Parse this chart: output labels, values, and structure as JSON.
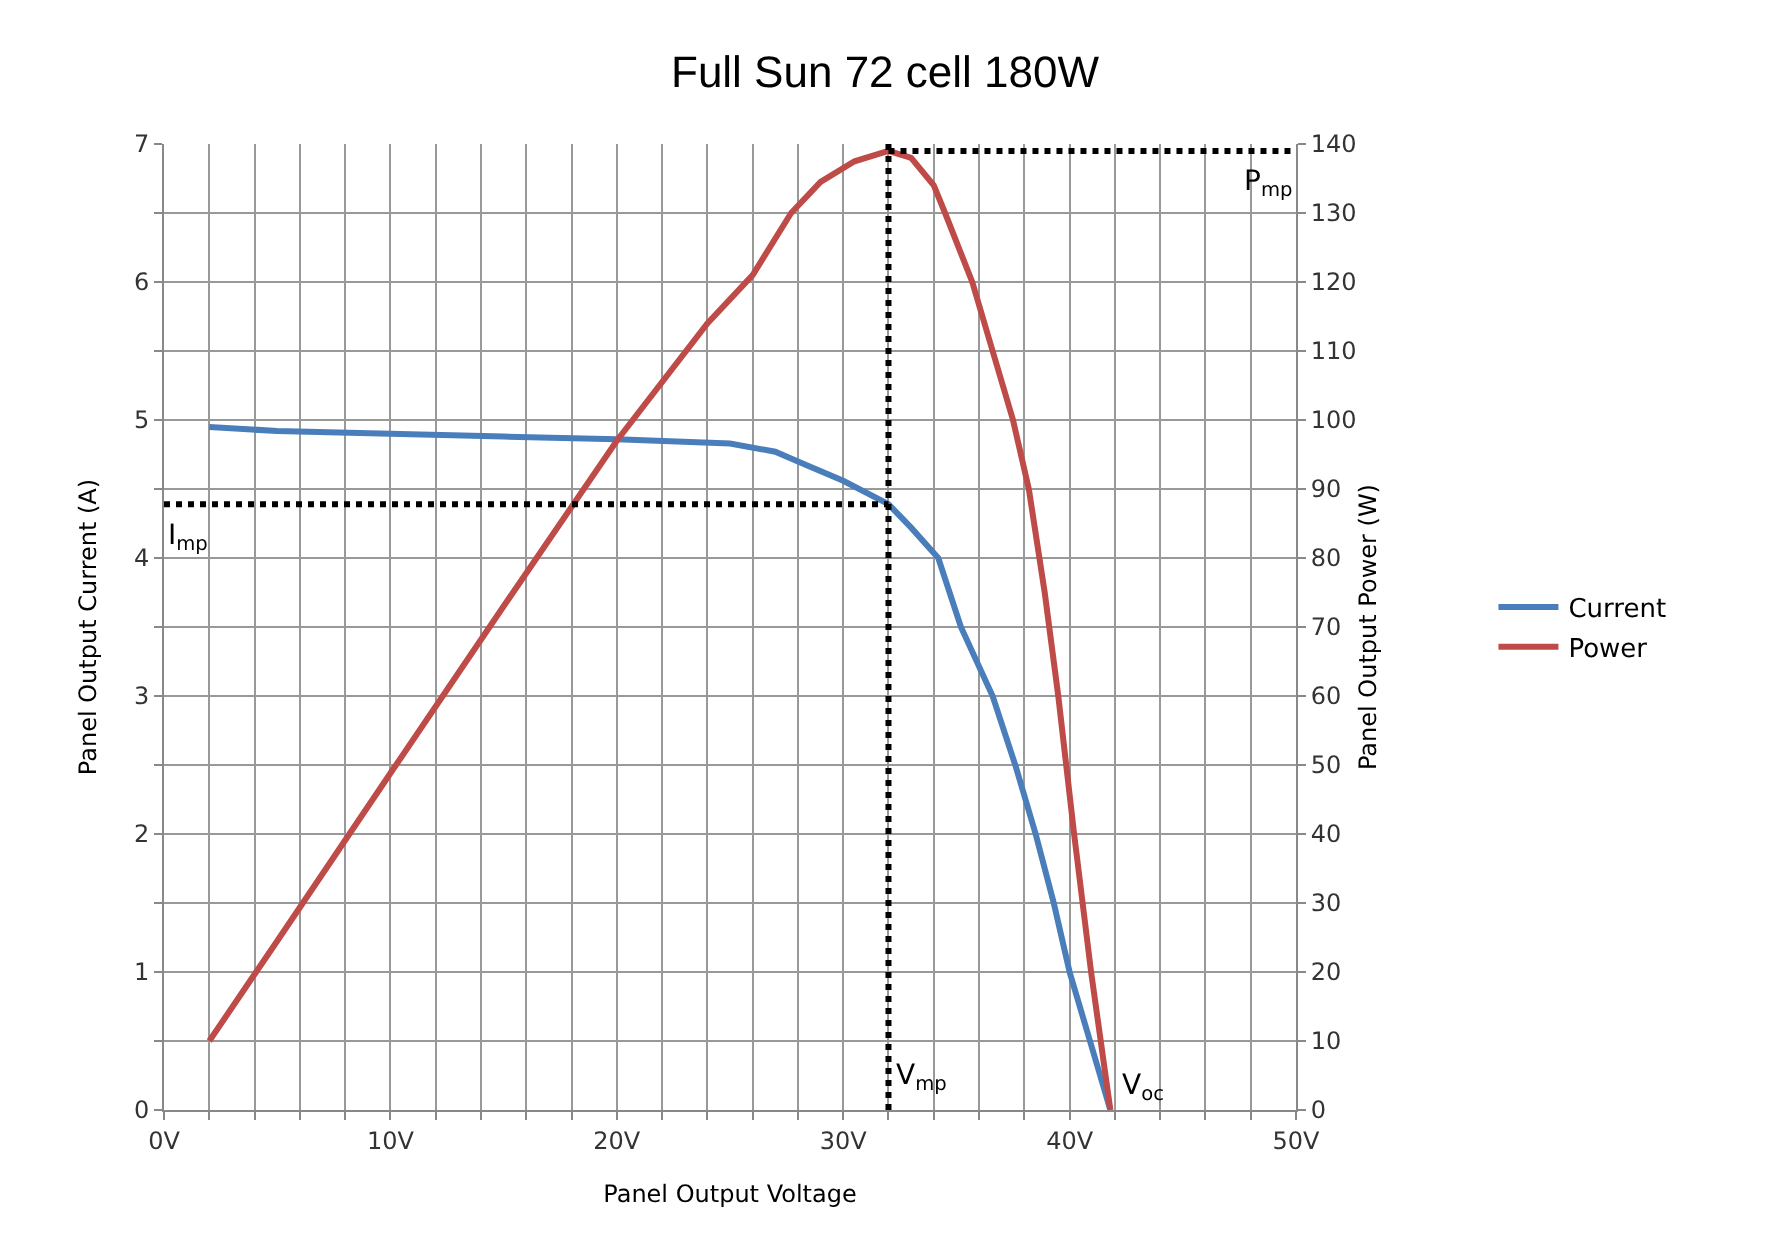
{
  "chart_data": {
    "type": "line",
    "title": "Full Sun 72 cell 180W",
    "xlabel": "Panel Output Voltage",
    "ylabel": "Panel Output Current (A)",
    "y2label": "Panel Output Power (W)",
    "series": [
      {
        "name": "Current",
        "color": "#4a7ebb",
        "x": [
          2,
          5,
          10,
          15,
          20,
          25,
          27,
          28,
          30,
          32,
          33,
          34.2,
          35.2,
          36.6,
          37.6,
          38.5,
          39.3,
          40,
          40.9,
          41.8
        ],
        "values": [
          4.95,
          4.92,
          4.9,
          4.88,
          4.86,
          4.83,
          4.77,
          4.7,
          4.56,
          4.39,
          4.22,
          4,
          3.5,
          3,
          2.5,
          2,
          1.5,
          1,
          0.5,
          0
        ]
      },
      {
        "name": "Power",
        "color": "#be4b48",
        "axis": "y2",
        "x": [
          2,
          5,
          10,
          15,
          20,
          24,
          26,
          27.7,
          29,
          30.5,
          32,
          33,
          34,
          34.5,
          35.7,
          36.6,
          37.5,
          38.2,
          38.9,
          39.5,
          40.2,
          40.95,
          41.8
        ],
        "values": [
          10,
          24.5,
          48.8,
          73,
          97,
          114,
          121,
          130,
          134.5,
          137.5,
          139,
          138,
          134,
          130,
          120,
          110,
          100,
          90,
          75,
          60,
          40,
          20,
          0
        ]
      }
    ],
    "xlim": [
      0,
      50
    ],
    "xticks": [
      {
        "value": 0,
        "label": "0V"
      },
      {
        "value": 2,
        "label": null
      },
      {
        "value": 4,
        "label": null
      },
      {
        "value": 6,
        "label": null
      },
      {
        "value": 8,
        "label": null
      },
      {
        "value": 10,
        "label": "10V"
      },
      {
        "value": 12,
        "label": null
      },
      {
        "value": 14,
        "label": null
      },
      {
        "value": 16,
        "label": null
      },
      {
        "value": 18,
        "label": null
      },
      {
        "value": 20,
        "label": "20V"
      },
      {
        "value": 22,
        "label": null
      },
      {
        "value": 24,
        "label": null
      },
      {
        "value": 26,
        "label": null
      },
      {
        "value": 28,
        "label": null
      },
      {
        "value": 30,
        "label": "30V"
      },
      {
        "value": 32,
        "label": null
      },
      {
        "value": 34,
        "label": null
      },
      {
        "value": 36,
        "label": null
      },
      {
        "value": 38,
        "label": null
      },
      {
        "value": 40,
        "label": "40V"
      },
      {
        "value": 42,
        "label": null
      },
      {
        "value": 44,
        "label": null
      },
      {
        "value": 46,
        "label": null
      },
      {
        "value": 48,
        "label": null
      },
      {
        "value": 50,
        "label": "50V"
      }
    ],
    "ylim": [
      0,
      7
    ],
    "yticks": [
      0,
      {
        "value": 0.5,
        "label": null
      },
      1,
      {
        "value": 1.5,
        "label": null
      },
      2,
      {
        "value": 2.5,
        "label": null
      },
      3,
      {
        "value": 3.5,
        "label": null
      },
      4,
      {
        "value": 4.5,
        "label": null
      },
      5,
      {
        "value": 5.5,
        "label": null
      },
      6,
      {
        "value": 6.5,
        "label": null
      },
      7
    ],
    "y2lim": [
      0,
      140
    ],
    "y2ticks": [
      0,
      10,
      20,
      30,
      40,
      50,
      60,
      70,
      80,
      90,
      100,
      110,
      120,
      130,
      140
    ],
    "ref_lines": [
      {
        "axis": "x",
        "value": 32,
        "label": "V$_{mp}$",
        "color": "#000000",
        "line_style": "dotted"
      },
      {
        "axis": "y",
        "value": 4.39,
        "label": "I$_{mp}$",
        "color": "#000000",
        "line_style": "dotted"
      },
      {
        "axis": "y2",
        "value": 139,
        "label": "P$_{mp}$",
        "color": "#000000",
        "line_style": "dotted"
      }
    ],
    "annotations": [
      {
        "text": "V$_{oc}$",
        "x": 41.8,
        "y": 0
      }
    ],
    "grid": true,
    "legend": "right",
    "marker": "none",
    "line_style": "solid"
  }
}
